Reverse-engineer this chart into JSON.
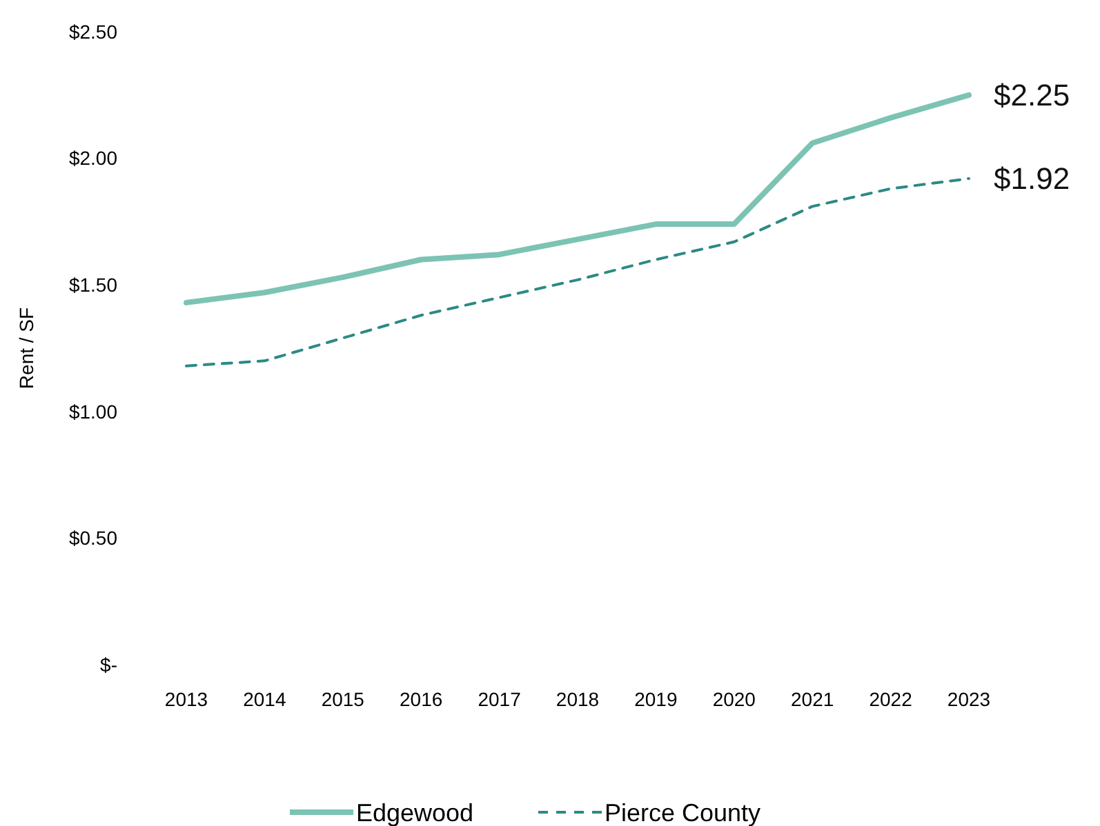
{
  "chart_data": {
    "type": "line",
    "ylabel": "Rent / SF",
    "categories": [
      "2013",
      "2014",
      "2015",
      "2016",
      "2017",
      "2018",
      "2019",
      "2020",
      "2021",
      "2022",
      "2023"
    ],
    "series": [
      {
        "name": "Edgewood",
        "color": "#7cc3b4",
        "line_style": "solid",
        "values": [
          1.43,
          1.47,
          1.53,
          1.6,
          1.62,
          1.68,
          1.74,
          1.74,
          2.06,
          2.16,
          2.25
        ],
        "value_labels": [
          null,
          null,
          null,
          null,
          null,
          null,
          null,
          null,
          null,
          null,
          "$2.25"
        ]
      },
      {
        "name": "Pierce County",
        "color": "#2b8a84",
        "line_style": "dashed",
        "values": [
          1.18,
          1.2,
          1.29,
          1.38,
          1.45,
          1.52,
          1.6,
          1.67,
          1.81,
          1.88,
          1.92
        ],
        "value_labels": [
          null,
          null,
          null,
          null,
          null,
          null,
          null,
          null,
          null,
          null,
          "$1.92"
        ]
      }
    ],
    "ylim": [
      0,
      2.5
    ],
    "yticks": [
      {
        "value": 0,
        "label": "$-"
      },
      {
        "value": 0.5,
        "label": "$0.50"
      },
      {
        "value": 1,
        "label": "$1.00"
      },
      {
        "value": 1.5,
        "label": "$1.50"
      },
      {
        "value": 2,
        "label": "$2.00"
      },
      {
        "value": 2.5,
        "label": "$2.50"
      }
    ],
    "grid": false,
    "legend": "bottom",
    "marker": "none"
  }
}
